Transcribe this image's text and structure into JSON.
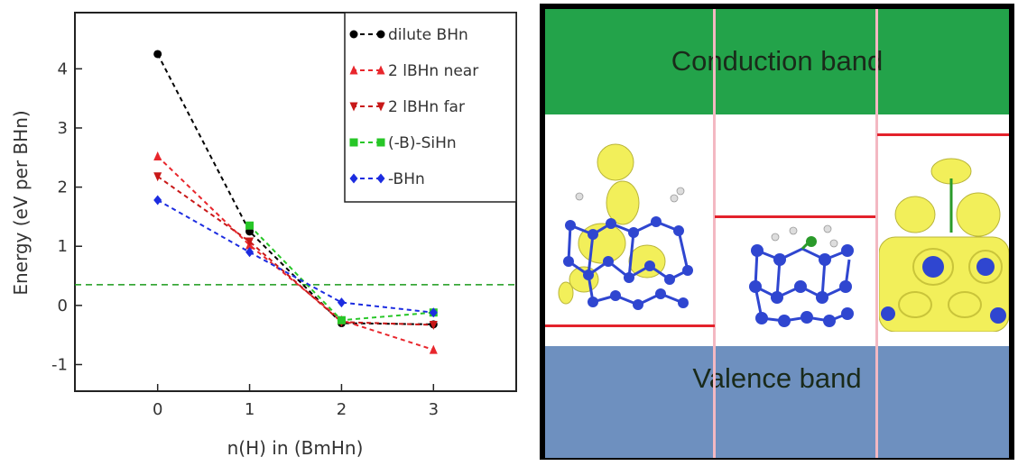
{
  "chart_data": {
    "type": "line",
    "title": "",
    "xlabel": "n(H) in (BmHn)",
    "ylabel": "Energy (eV per BHn)",
    "xlim": [
      -0.9,
      3.9
    ],
    "ylim": [
      -1.45,
      4.95
    ],
    "xticks": [
      0,
      1,
      2,
      3
    ],
    "yticks": [
      -1,
      0,
      1,
      2,
      3,
      4
    ],
    "x": [
      0,
      1,
      2,
      3
    ],
    "reference_line": {
      "y": 0.35,
      "color": "#1a9a1a",
      "style": "dashed"
    },
    "legend_position": "top-right",
    "series": [
      {
        "name": "dilute BHn",
        "color": "#000000",
        "marker": "circle",
        "values": [
          4.25,
          1.25,
          -0.3,
          -0.32
        ]
      },
      {
        "name": "2 lBHn near",
        "color": "#e8262c",
        "marker": "triangle-up",
        "values": [
          2.52,
          1.02,
          -0.25,
          -0.75
        ]
      },
      {
        "name": "2 lBHn far",
        "color": "#c81818",
        "marker": "triangle-down",
        "values": [
          2.18,
          1.08,
          -0.28,
          -0.33
        ]
      },
      {
        "name": "(-B)-SiHn",
        "color": "#27c627",
        "marker": "square",
        "values": [
          null,
          1.35,
          -0.25,
          -0.12
        ]
      },
      {
        "name": "-BHn",
        "color": "#1c2ce0",
        "marker": "diamond",
        "values": [
          1.78,
          0.9,
          0.05,
          -0.12
        ]
      }
    ]
  },
  "bands": {
    "conduction_label": "Conduction band",
    "valence_label": "Valence band",
    "conduction_color": "#23a34a",
    "valence_color": "#6e90bf",
    "level_color": "#e3212b"
  }
}
